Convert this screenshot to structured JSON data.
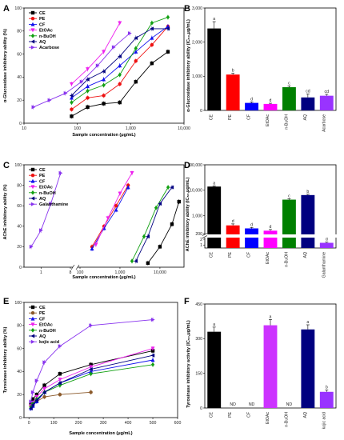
{
  "panels": [
    {
      "label": "A",
      "kind": "line",
      "xscale": "log",
      "yscale": "linear",
      "xlabel": "Sample concentration (μg/mL)",
      "ylabel": "α-Glucosidase inhibitory ability (%)",
      "xlim": [
        10,
        10000
      ],
      "ylim": [
        0,
        100
      ],
      "xticks": [
        10,
        100,
        1000,
        10000
      ],
      "xtick_labels": [
        "10",
        "100",
        "1,000",
        "10,000"
      ],
      "yticks": [
        0,
        20,
        40,
        60,
        80,
        100
      ],
      "ytick_labels": [
        "0",
        "20",
        "40",
        "60",
        "80",
        "100"
      ],
      "legend_position": "top-left",
      "series": [
        {
          "name": "CE",
          "color": "#000000",
          "marker": "square",
          "x": [
            78,
            156,
            312,
            625,
            1250,
            2500,
            5000
          ],
          "y": [
            6,
            14,
            17,
            18,
            36,
            52,
            62
          ]
        },
        {
          "name": "PE",
          "color": "#ee1111",
          "marker": "circle",
          "x": [
            78,
            156,
            312,
            625,
            1250,
            2500,
            5000
          ],
          "y": [
            12,
            22,
            24,
            34,
            54,
            68,
            84
          ]
        },
        {
          "name": "CF",
          "color": "#1111ee",
          "marker": "triangle",
          "x": [
            78,
            156,
            312,
            625,
            1250,
            2500,
            5000
          ],
          "y": [
            22,
            32,
            38,
            50,
            62,
            74,
            84
          ]
        },
        {
          "name": "EtOAc",
          "color": "#ee22ee",
          "marker": "triangle-down",
          "x": [
            78,
            156,
            312,
            625
          ],
          "y": [
            34,
            47,
            62,
            87
          ]
        },
        {
          "name": "n-BuOH",
          "color": "#11a011",
          "marker": "diamond",
          "x": [
            78,
            156,
            312,
            625,
            1250,
            2500,
            5000
          ],
          "y": [
            18,
            28,
            33,
            42,
            65,
            87,
            92
          ]
        },
        {
          "name": "AQ",
          "color": "#000080",
          "marker": "triangle-left",
          "x": [
            78,
            156,
            312,
            625,
            1250,
            2500,
            5000
          ],
          "y": [
            24,
            38,
            45,
            58,
            74,
            82,
            82
          ]
        },
        {
          "name": "Acarbose",
          "color": "#8833ee",
          "marker": "triangle-right",
          "x": [
            15,
            30,
            60,
            120,
            240,
            480,
            960
          ],
          "y": [
            14,
            20,
            26,
            36,
            50,
            66,
            78
          ]
        }
      ]
    },
    {
      "label": "B",
      "kind": "bar",
      "yscale": "linear",
      "ylabel": "α-Glucosidase inhibitory ability (IC₅₀,μg/mL)",
      "ylim": [
        0,
        3000
      ],
      "yticks": [
        0,
        1000,
        2000,
        3000
      ],
      "ytick_labels": [
        "0",
        "1,000",
        "2,000",
        "3,000"
      ],
      "categories": [
        "CE",
        "PE",
        "CF",
        "EtOAc",
        "n-BuOH",
        "AQ",
        "Acarbose"
      ],
      "values": [
        2400,
        1050,
        220,
        190,
        680,
        380,
        430
      ],
      "errors": [
        200,
        40,
        30,
        20,
        40,
        100,
        40
      ],
      "letters": [
        "a",
        "b",
        "d",
        "d",
        "c",
        "cd",
        "cd"
      ],
      "colors": [
        "#000000",
        "#ff0000",
        "#0000ff",
        "#ff00ff",
        "#008000",
        "#000080",
        "#9933ff"
      ]
    },
    {
      "label": "C",
      "kind": "line",
      "xscale": "log-broken",
      "yscale": "linear",
      "xlabel": "Sample concentration (μg/mL)",
      "ylabel": "AChE inhibitory ability (%)",
      "ylim": [
        0,
        100
      ],
      "xticks": [
        1,
        8,
        100,
        1000,
        10000
      ],
      "xtick_labels": [
        "1",
        "8",
        "100",
        "1,000",
        "10,000"
      ],
      "yticks": [
        0,
        20,
        40,
        60,
        80,
        100
      ],
      "ytick_labels": [
        "0",
        "20",
        "40",
        "60",
        "80",
        "100"
      ],
      "legend_position": "top-left",
      "series": [
        {
          "name": "CE",
          "color": "#000000",
          "marker": "square",
          "x": [
            5000,
            10000,
            20000,
            30000
          ],
          "y": [
            4,
            20,
            42,
            64
          ]
        },
        {
          "name": "PE",
          "color": "#ee1111",
          "marker": "circle",
          "x": [
            200,
            400,
            800,
            1600
          ],
          "y": [
            20,
            40,
            60,
            80
          ]
        },
        {
          "name": "CF",
          "color": "#1111ee",
          "marker": "triangle",
          "x": [
            200,
            400,
            800,
            1600
          ],
          "y": [
            18,
            38,
            56,
            78
          ]
        },
        {
          "name": "EtOAc",
          "color": "#ee22ee",
          "marker": "triangle-down",
          "x": [
            250,
            500,
            1000,
            2000
          ],
          "y": [
            22,
            48,
            72,
            92
          ]
        },
        {
          "name": "n-BuOH",
          "color": "#11a011",
          "marker": "diamond",
          "x": [
            2000,
            4000,
            8000,
            16000
          ],
          "y": [
            6,
            30,
            58,
            78
          ]
        },
        {
          "name": "AQ",
          "color": "#000080",
          "marker": "triangle-left",
          "x": [
            2500,
            5000,
            10000,
            20000
          ],
          "y": [
            6,
            30,
            62,
            78
          ]
        },
        {
          "name": "Galanthamine",
          "color": "#8833ee",
          "marker": "triangle-right",
          "x": [
            0.5,
            1,
            2,
            4
          ],
          "y": [
            20,
            36,
            62,
            92
          ]
        }
      ]
    },
    {
      "label": "D",
      "kind": "bar",
      "yscale": "log-broken",
      "ylabel": "AChE inhibitory ability (IC₅₀,μg/mL)",
      "yticks": [
        1,
        2,
        200,
        1000,
        10000,
        100000
      ],
      "ytick_labels": [
        "1",
        "2",
        "200",
        "1,000",
        "10,000",
        "100,000"
      ],
      "categories": [
        "CE",
        "PE",
        "CF",
        "EtOAc",
        "n-BuOH",
        "AQ",
        "Galanthamine"
      ],
      "values": [
        14000,
        420,
        320,
        260,
        4300,
        6500,
        1.3
      ],
      "errors": [
        1000,
        60,
        30,
        30,
        400,
        500,
        0.1
      ],
      "letters": [
        "a",
        "d",
        "d",
        "d",
        "c",
        "b",
        "d"
      ],
      "colors": [
        "#000000",
        "#ff0000",
        "#0000ff",
        "#ff00ff",
        "#008000",
        "#000080",
        "#9933ff"
      ]
    },
    {
      "label": "E",
      "kind": "line",
      "xscale": "linear",
      "yscale": "linear",
      "xlabel": "Sample concentration (μg/mL)",
      "ylabel": "Tyrosinase inhibitory ability (%)",
      "xlim": [
        -20,
        600
      ],
      "ylim": [
        0,
        100
      ],
      "xticks": [
        0,
        100,
        200,
        300,
        400,
        500,
        600
      ],
      "xtick_labels": [
        "0",
        "100",
        "200",
        "300",
        "400",
        "500",
        "600"
      ],
      "yticks": [
        0,
        20,
        40,
        60,
        80,
        100
      ],
      "ytick_labels": [
        "0",
        "20",
        "40",
        "60",
        "80",
        "100"
      ],
      "legend_position": "top-left",
      "series": [
        {
          "name": "CE",
          "color": "#000000",
          "marker": "square",
          "x": [
            7.8,
            15.6,
            31.25,
            62.5,
            125,
            250,
            500
          ],
          "y": [
            12,
            16,
            20,
            28,
            38,
            46,
            58
          ]
        },
        {
          "name": "PE",
          "color": "#8b5a2b",
          "marker": "circle",
          "x": [
            7.8,
            15.6,
            31.25,
            62.5,
            125,
            250
          ],
          "y": [
            10,
            12,
            14,
            18,
            20,
            22
          ]
        },
        {
          "name": "CF",
          "color": "#1111ee",
          "marker": "triangle",
          "x": [
            7.8,
            15.6,
            31.25,
            62.5,
            125,
            250,
            500
          ],
          "y": [
            8,
            10,
            14,
            22,
            30,
            40,
            50
          ]
        },
        {
          "name": "EtOAc",
          "color": "#ee22ee",
          "marker": "triangle-down",
          "x": [
            7.8,
            15.6,
            31.25,
            62.5,
            125,
            250,
            500
          ],
          "y": [
            10,
            13,
            18,
            25,
            33,
            44,
            60
          ]
        },
        {
          "name": "n-BuOH",
          "color": "#11a011",
          "marker": "diamond",
          "x": [
            7.8,
            15.6,
            31.25,
            62.5,
            125,
            250,
            500
          ],
          "y": [
            9,
            12,
            16,
            22,
            28,
            38,
            46
          ]
        },
        {
          "name": "AQ",
          "color": "#000080",
          "marker": "triangle-left",
          "x": [
            7.8,
            15.6,
            31.25,
            62.5,
            125,
            250,
            500
          ],
          "y": [
            8,
            11,
            15,
            22,
            30,
            42,
            54
          ]
        },
        {
          "name": "kojic acid",
          "color": "#8833ee",
          "marker": "triangle-right",
          "x": [
            7.8,
            15.6,
            31.25,
            62.5,
            125,
            250,
            500
          ],
          "y": [
            14,
            22,
            32,
            48,
            62,
            80,
            85
          ]
        }
      ]
    },
    {
      "label": "F",
      "kind": "bar",
      "yscale": "linear",
      "ylabel": "Tyrosinase inhibitory activity (IC₅₀,μg/mL)",
      "ylim": [
        0,
        450
      ],
      "yticks": [
        0,
        150,
        300,
        450
      ],
      "ytick_labels": [
        "0",
        "150",
        "300",
        "450"
      ],
      "categories": [
        "CE",
        "PE",
        "CF",
        "EtOAc",
        "n-BuOH",
        "AQ",
        "kojic acid"
      ],
      "values": [
        330,
        null,
        null,
        358,
        null,
        340,
        70
      ],
      "errors": [
        20,
        null,
        null,
        25,
        null,
        20,
        8
      ],
      "letters": [
        "a",
        "ND",
        "ND",
        "a",
        "ND",
        "a",
        "b"
      ],
      "colors": [
        "#000000",
        "#ff0000",
        "#0000ff",
        "#cc33ff",
        "#008000",
        "#000080",
        "#9933ff"
      ]
    }
  ]
}
